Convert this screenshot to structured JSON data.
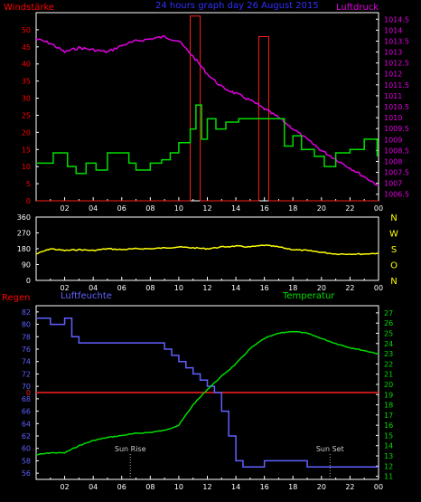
{
  "panel1": {
    "left_title": "Windstärke",
    "center_title": "24 hours graph day  26 August  2015",
    "right_title": "Luftdruck",
    "left_axis": [
      "0",
      "5",
      "10",
      "15",
      "20",
      "25",
      "30",
      "35",
      "40",
      "45",
      "50"
    ],
    "right_axis": [
      "1006.5",
      "1007",
      "1007.5",
      "1008",
      "1008.5",
      "1009",
      "1009.5",
      "1010",
      "1010.5",
      "1011",
      "1011.5",
      "1012",
      "1012.5",
      "1013",
      "1013.5",
      "1014",
      "1014.5"
    ],
    "x_ticks": [
      "02",
      "04",
      "06",
      "08",
      "10",
      "12",
      "14",
      "16",
      "18",
      "20",
      "22",
      "00"
    ]
  },
  "panel2": {
    "left_axis": [
      "0",
      "90",
      "180",
      "270",
      "360"
    ],
    "right_labels": [
      "N",
      "W",
      "S",
      "O",
      "N"
    ],
    "x_ticks": [
      "02",
      "04",
      "06",
      "08",
      "10",
      "12",
      "14",
      "16",
      "18",
      "20",
      "22",
      "00"
    ]
  },
  "panel3": {
    "regen_label": "Regen",
    "humidity_label": "Luftfeuchte",
    "temperature_label": "Temperatur",
    "left_axis": [
      "56",
      "58",
      "60",
      "62",
      "64",
      "66",
      "68",
      "70",
      "72",
      "74",
      "76",
      "78",
      "80",
      "82"
    ],
    "right_axis": [
      "11",
      "12",
      "13",
      "14",
      "15",
      "16",
      "17",
      "18",
      "19",
      "20",
      "21",
      "22",
      "23",
      "24",
      "25",
      "26",
      "27"
    ],
    "rain_axis_label": "0",
    "sunrise_label": "Sun Rise",
    "sunset_label": "Sun Set",
    "x_ticks": [
      "02",
      "04",
      "06",
      "08",
      "10",
      "12",
      "14",
      "16",
      "18",
      "20",
      "22",
      "00"
    ]
  },
  "colors": {
    "wind": "#00dd00",
    "gust": "#ff2020",
    "pressure": "#e000e0",
    "direction": "#ffff00",
    "humidity": "#6060ff",
    "temperature": "#00dd00",
    "rain": "#ff2020",
    "frame": "#ffffff",
    "grid": "#404040",
    "left_axis_red": "#ff0000",
    "pressure_axis": "#e000e0",
    "title_blue": "#3030ff",
    "direction_axis": "#ffff00",
    "humidity_axis": "#6060ff",
    "temp_axis": "#00dd00"
  },
  "chart_data": [
    {
      "type": "line",
      "series": [
        {
          "name": "Windstärke",
          "unit": "km/h",
          "x": [
            0,
            1.2,
            2.2,
            2.8,
            3.5,
            4.2,
            5.0,
            6.5,
            7.0,
            8.0,
            8.8,
            9.4,
            10.0,
            10.8,
            11.2,
            11.6,
            12.0,
            12.6,
            13.3,
            14.2,
            15.0,
            16.0,
            17.0,
            17.4,
            18.0,
            18.6,
            19.5,
            20.2,
            21.0,
            22.0,
            23.0,
            23.5,
            23.9
          ],
          "values": [
            11,
            14,
            10,
            8,
            11,
            9,
            14,
            11,
            9,
            11,
            12,
            14,
            17,
            21,
            28,
            18,
            24,
            21,
            23,
            24,
            24,
            24,
            24,
            16,
            19,
            15,
            13,
            10,
            14,
            15,
            18,
            18,
            13
          ]
        },
        {
          "name": "Böen",
          "unit": "km/h",
          "x": [
            0,
            10.7,
            10.8,
            11.4,
            11.5,
            15.5,
            15.6,
            16.2,
            16.3,
            24
          ],
          "values": [
            0,
            0,
            54,
            54,
            0,
            0,
            48,
            48,
            0,
            0
          ]
        },
        {
          "name": "Luftdruck",
          "unit": "hPa",
          "x": [
            0,
            1,
            2,
            3,
            4,
            5,
            6,
            7,
            8,
            9,
            10,
            11,
            12,
            13,
            14,
            15,
            16,
            17,
            18,
            19,
            20,
            21,
            22,
            23,
            24
          ],
          "values": [
            1013.6,
            1013.4,
            1013.0,
            1013.2,
            1013.1,
            1013.0,
            1013.3,
            1013.5,
            1013.6,
            1013.7,
            1013.5,
            1012.8,
            1012.0,
            1011.4,
            1011.1,
            1010.8,
            1010.4,
            1010.0,
            1009.5,
            1009.0,
            1008.5,
            1008.1,
            1007.7,
            1007.3,
            1006.9
          ]
        }
      ]
    },
    {
      "type": "line",
      "series": [
        {
          "name": "Windrichtung",
          "unit": "deg",
          "x": [
            0,
            1,
            2,
            3,
            4,
            5,
            6,
            7,
            8,
            9,
            10,
            11,
            12,
            13,
            14,
            15,
            16,
            17,
            18,
            19,
            20,
            21,
            22,
            23,
            24
          ],
          "values": [
            150,
            180,
            170,
            175,
            170,
            180,
            175,
            180,
            180,
            185,
            190,
            185,
            180,
            190,
            195,
            190,
            200,
            190,
            175,
            170,
            160,
            150,
            150,
            150,
            155
          ]
        }
      ]
    },
    {
      "type": "line",
      "series": [
        {
          "name": "Luftfeuchte",
          "unit": "%",
          "x": [
            0,
            1,
            2,
            2.5,
            3,
            4,
            5,
            6,
            7,
            8,
            9,
            9.5,
            10,
            10.5,
            11,
            11.5,
            12,
            12.5,
            13,
            13.5,
            14,
            14.5,
            15,
            16,
            17,
            18,
            19,
            20,
            21,
            22,
            23,
            24
          ],
          "values": [
            81,
            80,
            81,
            78,
            77,
            77,
            77,
            77,
            77,
            77,
            76,
            75,
            74,
            73,
            72,
            71,
            70,
            69,
            66,
            62,
            58,
            57,
            57,
            58,
            58,
            58,
            57,
            57,
            57,
            57,
            57,
            57
          ]
        },
        {
          "name": "Temperatur",
          "unit": "°C",
          "x": [
            0,
            1,
            2,
            3,
            4,
            5,
            6,
            7,
            8,
            9,
            10,
            11,
            12,
            13,
            14,
            15,
            16,
            17,
            18,
            19,
            20,
            21,
            22,
            23,
            24
          ],
          "values": [
            13.1,
            13.3,
            13.3,
            14.0,
            14.5,
            14.8,
            15.0,
            15.2,
            15.3,
            15.5,
            16.0,
            18.0,
            19.5,
            20.8,
            22.0,
            23.5,
            24.5,
            25.0,
            25.2,
            25.0,
            24.5,
            24.0,
            23.6,
            23.3,
            23.0
          ]
        },
        {
          "name": "Regen",
          "unit": "mm",
          "x": [
            0,
            24
          ],
          "values": [
            0,
            0
          ]
        }
      ]
    }
  ]
}
